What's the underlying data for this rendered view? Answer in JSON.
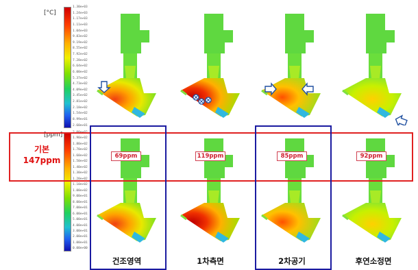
{
  "temperature_unit": "[°C]",
  "concentration_unit": "[ppm]",
  "base_label_line1": "기본",
  "base_label_line2": "147ppm",
  "temp_ticks": [
    "1.30e+03",
    "1.24e+03",
    "1.17e+03",
    "1.11e+03",
    "1.04e+03",
    "9.83e+02",
    "9.19e+02",
    "8.55e+02",
    "7.92e+02",
    "7.28e+02",
    "6.64e+02",
    "6.00e+02",
    "5.37e+02",
    "4.73e+02",
    "4.09e+02",
    "3.45e+02",
    "2.81e+02",
    "2.18e+02",
    "1.54e+02",
    "8.99e+01",
    "2.60e+01"
  ],
  "ppm_ticks": [
    "2.00e+02",
    "1.90e+02",
    "1.80e+02",
    "1.70e+02",
    "1.60e+02",
    "1.50e+02",
    "1.40e+02",
    "1.30e+02",
    "1.20e+02",
    "1.10e+02",
    "1.00e+02",
    "9.00e+01",
    "8.00e+01",
    "7.00e+01",
    "6.00e+01",
    "5.00e+01",
    "4.00e+01",
    "3.00e+01",
    "2.00e+01",
    "1.00e+01",
    "0.00e+00"
  ],
  "cases": [
    {
      "label": "건조영역",
      "ppm": "69ppm"
    },
    {
      "label": "1차측면",
      "ppm": "119ppm"
    },
    {
      "label": "2차공기",
      "ppm": "85ppm"
    },
    {
      "label": "후연소정면",
      "ppm": "92ppm"
    }
  ],
  "colors": {
    "highlight_box": "#e02020",
    "group_box": "#1a1aa0",
    "ppm_text": "#d02030"
  }
}
